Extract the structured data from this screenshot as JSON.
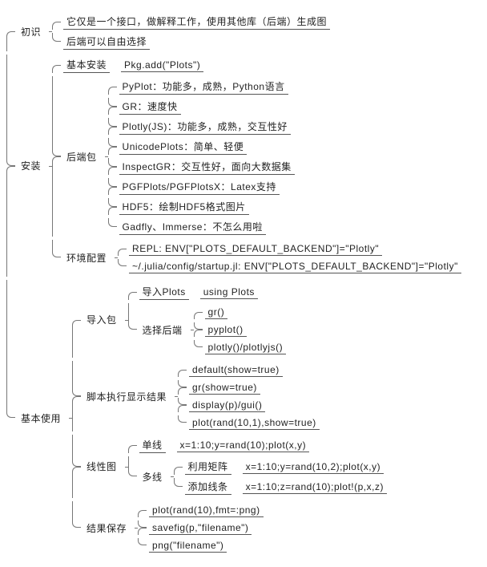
{
  "diagram": {
    "type": "tree",
    "orientation": "left-to-right",
    "connector_style": "curly-brace",
    "background_color": "#ffffff",
    "line_color": "#777777",
    "text_color": "#222222",
    "underline_color": "#555555",
    "font_family": "Microsoft YaHei / SimSun",
    "label_fontsize": 12,
    "node_padding": "2px 4px",
    "leaf_underlined": true
  },
  "root": [
    {
      "label": "初识",
      "children": [
        {
          "label": "它仅是一个接口，做解释工作，使用其他库（后端）生成图"
        },
        {
          "label": "后端可以自由选择"
        }
      ]
    },
    {
      "label": "安装",
      "children": [
        {
          "label": "基本安装",
          "aside": "Pkg.add(\"Plots\")"
        },
        {
          "label": "后端包",
          "children": [
            {
              "label": "PyPlot：功能多，成熟，Python语言"
            },
            {
              "label": "GR：速度快"
            },
            {
              "label": "Plotly(JS)：功能多，成熟，交互性好"
            },
            {
              "label": "UnicodePlots：简单、轻便"
            },
            {
              "label": "InspectGR：交互性好，面向大数据集"
            },
            {
              "label": "PGFPlots/PGFPlotsX：Latex支持"
            },
            {
              "label": "HDF5：绘制HDF5格式图片"
            },
            {
              "label": "Gadfly、Immerse：不怎么用啦"
            }
          ]
        },
        {
          "label": "环境配置",
          "children": [
            {
              "label": "REPL: ENV[\"PLOTS_DEFAULT_BACKEND\"]=\"Plotly\""
            },
            {
              "label": "~/.julia/config/startup.jl: ENV[\"PLOTS_DEFAULT_BACKEND\"]=\"Plotly\""
            }
          ]
        }
      ]
    },
    {
      "label": "基本使用",
      "children": [
        {
          "label": "导入包",
          "children": [
            {
              "label": "导入Plots",
              "aside": "using Plots"
            },
            {
              "label": "选择后端",
              "children": [
                {
                  "label": "gr()"
                },
                {
                  "label": "pyplot()"
                },
                {
                  "label": "plotly()/plotlyjs()"
                }
              ]
            }
          ]
        },
        {
          "label": "脚本执行显示结果",
          "children": [
            {
              "label": "default(show=true)"
            },
            {
              "label": "gr(show=true)"
            },
            {
              "label": "display(p)/gui()"
            },
            {
              "label": "plot(rand(10,1),show=true)"
            }
          ]
        },
        {
          "label": "线性图",
          "children": [
            {
              "label": "单线",
              "aside": "x=1:10;y=rand(10);plot(x,y)"
            },
            {
              "label": "多线",
              "children": [
                {
                  "label": "利用矩阵",
                  "aside": "x=1:10;y=rand(10,2);plot(x,y)"
                },
                {
                  "label": "添加线条",
                  "aside": "x=1:10;z=rand(10);plot!(p,x,z)"
                }
              ]
            }
          ]
        },
        {
          "label": "结果保存",
          "children": [
            {
              "label": "plot(rand(10),fmt=:png)"
            },
            {
              "label": "savefig(p,\"filename\")"
            },
            {
              "label": "png(\"filename\")"
            }
          ]
        }
      ]
    }
  ]
}
